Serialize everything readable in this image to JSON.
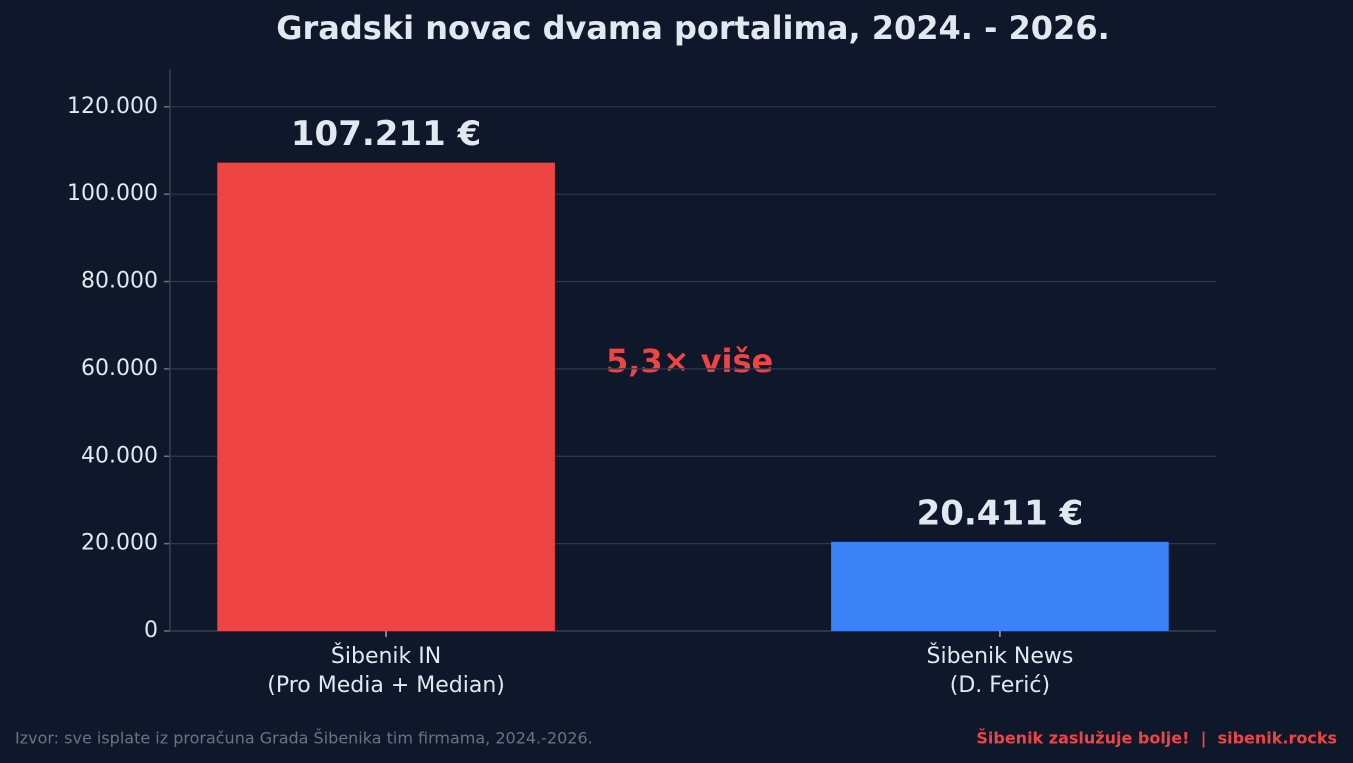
{
  "chart_data": {
    "type": "bar",
    "title": "Gradski novac dvama portalima, 2024. - 2026.",
    "categories": [
      "Šibenik IN\n(Pro Media + Median)",
      "Šibenik News\n(D. Ferić)"
    ],
    "values": [
      107211,
      20411
    ],
    "value_labels": [
      "107.211 €",
      "20.411 €"
    ],
    "colors": [
      "#ef4444",
      "#3b82f6"
    ],
    "ylim": [
      0,
      128653
    ],
    "yticks": [
      0,
      {
        "value": 20000,
        "label": "20.000"
      },
      {
        "value": 40000,
        "label": "40.000"
      },
      {
        "value": 60000,
        "label": "60.000"
      },
      {
        "value": 80000,
        "label": "80.000"
      },
      {
        "value": 100000,
        "label": "100.000"
      },
      {
        "value": 120000,
        "label": "120.000"
      }
    ],
    "grid": true,
    "annotation": "5,3× više",
    "source": "Izvor: sve isplate iz proračuna Grada Šibenika tim firmama, 2024.-2026.",
    "credit": "Šibenik zaslužuje bolje!  |  sibenik.rocks"
  }
}
